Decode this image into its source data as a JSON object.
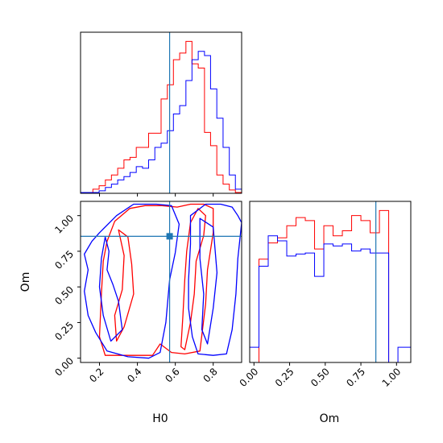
{
  "chart_data": {
    "type": "corner",
    "parameters": [
      "H0",
      "Om"
    ],
    "truth": {
      "H0": 0.57,
      "Om": 0.855
    },
    "colors": {
      "series_a": "#ff0000",
      "series_b": "#0000ff",
      "truth": "#1f77b4"
    },
    "axes": {
      "H0": {
        "range": [
          0.1,
          0.95
        ],
        "ticks": [
          0.2,
          0.4,
          0.6,
          0.8
        ],
        "tick_labels": [
          "0.2",
          "0.4",
          "0.6",
          "0.8"
        ]
      },
      "Om": {
        "range": [
          -0.03,
          1.1
        ],
        "ticks": [
          0.0,
          0.25,
          0.5,
          0.75,
          1.0
        ],
        "tick_labels": [
          "0.00",
          "0.25",
          "0.50",
          "0.75",
          "1.00"
        ]
      }
    },
    "hist_H0": {
      "bins": [
        0.1,
        0.133,
        0.165,
        0.198,
        0.231,
        0.263,
        0.296,
        0.329,
        0.361,
        0.394,
        0.427,
        0.459,
        0.492,
        0.525,
        0.558,
        0.59,
        0.623,
        0.656,
        0.688,
        0.721,
        0.754,
        0.786,
        0.819,
        0.852,
        0.885,
        0.917,
        0.95
      ],
      "series": [
        {
          "color": "red",
          "counts": [
            1,
            1,
            5,
            9,
            16,
            22,
            30,
            40,
            43,
            55,
            55,
            72,
            72,
            113,
            130,
            160,
            168,
            182,
            155,
            150,
            73,
            57,
            22,
            11,
            4,
            1
          ]
        },
        {
          "color": "blue",
          "counts": [
            1,
            1,
            1,
            3,
            7,
            11,
            16,
            20,
            25,
            32,
            30,
            40,
            55,
            60,
            75,
            95,
            105,
            135,
            160,
            170,
            165,
            125,
            90,
            55,
            22,
            5
          ]
        }
      ]
    },
    "hist_Om": {
      "bins": [
        -0.03,
        0.035,
        0.1,
        0.165,
        0.23,
        0.295,
        0.36,
        0.425,
        0.49,
        0.555,
        0.62,
        0.685,
        0.75,
        0.815,
        0.88,
        0.945,
        1.01,
        1.075,
        1.1
      ],
      "series": [
        {
          "color": "red",
          "counts": [
            0,
            102,
            118,
            123,
            135,
            143,
            140,
            112,
            135,
            125,
            130,
            145,
            140,
            128,
            150,
            0,
            0,
            0
          ]
        },
        {
          "color": "blue",
          "counts": [
            15,
            95,
            125,
            120,
            105,
            107,
            108,
            85,
            117,
            115,
            117,
            110,
            112,
            108,
            108,
            0,
            15,
            15
          ]
        }
      ]
    },
    "contours": [
      {
        "color": "red",
        "level": "outer",
        "points": [
          [
            0.28,
            0.96
          ],
          [
            0.36,
            1.05
          ],
          [
            0.44,
            1.07
          ],
          [
            0.53,
            1.07
          ],
          [
            0.61,
            1.06
          ],
          [
            0.68,
            1.08
          ],
          [
            0.75,
            1.08
          ],
          [
            0.8,
            1.05
          ],
          [
            0.8,
            0.88
          ],
          [
            0.77,
            0.62
          ],
          [
            0.76,
            0.38
          ],
          [
            0.73,
            0.05
          ],
          [
            0.65,
            0.03
          ],
          [
            0.58,
            0.04
          ],
          [
            0.52,
            0.1
          ],
          [
            0.48,
            0.02
          ],
          [
            0.36,
            0.02
          ],
          [
            0.23,
            0.02
          ],
          [
            0.2,
            0.15
          ],
          [
            0.21,
            0.45
          ],
          [
            0.22,
            0.68
          ],
          [
            0.24,
            0.82
          ],
          [
            0.28,
            0.96
          ]
        ]
      },
      {
        "color": "red",
        "level": "inner",
        "points": [
          [
            0.3,
            0.9
          ],
          [
            0.33,
            0.72
          ],
          [
            0.32,
            0.48
          ],
          [
            0.28,
            0.3
          ],
          [
            0.29,
            0.12
          ],
          [
            0.33,
            0.22
          ],
          [
            0.38,
            0.45
          ],
          [
            0.37,
            0.66
          ],
          [
            0.35,
            0.85
          ],
          [
            0.3,
            0.9
          ]
        ]
      },
      {
        "color": "red",
        "level": "inner",
        "points": [
          [
            0.65,
            0.06
          ],
          [
            0.68,
            0.25
          ],
          [
            0.7,
            0.45
          ],
          [
            0.71,
            0.68
          ],
          [
            0.75,
            0.86
          ],
          [
            0.76,
            1.0
          ],
          [
            0.72,
            1.05
          ],
          [
            0.68,
            0.95
          ],
          [
            0.66,
            0.75
          ],
          [
            0.65,
            0.55
          ],
          [
            0.64,
            0.3
          ],
          [
            0.63,
            0.08
          ],
          [
            0.65,
            0.06
          ]
        ]
      },
      {
        "color": "blue",
        "level": "outer",
        "points": [
          [
            0.38,
            1.08
          ],
          [
            0.5,
            1.08
          ],
          [
            0.58,
            1.07
          ],
          [
            0.62,
            0.94
          ],
          [
            0.6,
            0.74
          ],
          [
            0.57,
            0.55
          ],
          [
            0.55,
            0.25
          ],
          [
            0.52,
            0.04
          ],
          [
            0.46,
            0.0
          ],
          [
            0.35,
            0.01
          ],
          [
            0.24,
            0.05
          ],
          [
            0.18,
            0.18
          ],
          [
            0.14,
            0.3
          ],
          [
            0.12,
            0.47
          ],
          [
            0.14,
            0.62
          ],
          [
            0.12,
            0.73
          ],
          [
            0.16,
            0.82
          ],
          [
            0.2,
            0.88
          ],
          [
            0.29,
            1.0
          ],
          [
            0.38,
            1.08
          ]
        ]
      },
      {
        "color": "blue",
        "level": "inner",
        "points": [
          [
            0.26,
            0.12
          ],
          [
            0.32,
            0.2
          ],
          [
            0.3,
            0.4
          ],
          [
            0.27,
            0.52
          ],
          [
            0.24,
            0.62
          ],
          [
            0.25,
            0.75
          ],
          [
            0.23,
            0.85
          ],
          [
            0.21,
            0.7
          ],
          [
            0.2,
            0.5
          ],
          [
            0.22,
            0.3
          ],
          [
            0.26,
            0.12
          ]
        ]
      },
      {
        "color": "blue",
        "level": "outer",
        "points": [
          [
            0.68,
            1.0
          ],
          [
            0.76,
            1.08
          ],
          [
            0.84,
            1.08
          ],
          [
            0.9,
            1.06
          ],
          [
            0.93,
            1.0
          ],
          [
            0.95,
            0.95
          ],
          [
            0.93,
            0.7
          ],
          [
            0.92,
            0.45
          ],
          [
            0.9,
            0.2
          ],
          [
            0.87,
            0.03
          ],
          [
            0.8,
            0.02
          ],
          [
            0.72,
            0.03
          ],
          [
            0.69,
            0.15
          ],
          [
            0.67,
            0.35
          ],
          [
            0.67,
            0.55
          ],
          [
            0.68,
            0.8
          ],
          [
            0.68,
            1.0
          ]
        ]
      },
      {
        "color": "blue",
        "level": "inner",
        "points": [
          [
            0.73,
            0.98
          ],
          [
            0.8,
            0.92
          ],
          [
            0.82,
            0.6
          ],
          [
            0.8,
            0.35
          ],
          [
            0.77,
            0.1
          ],
          [
            0.74,
            0.2
          ],
          [
            0.75,
            0.45
          ],
          [
            0.73,
            0.7
          ],
          [
            0.73,
            0.98
          ]
        ]
      }
    ]
  }
}
